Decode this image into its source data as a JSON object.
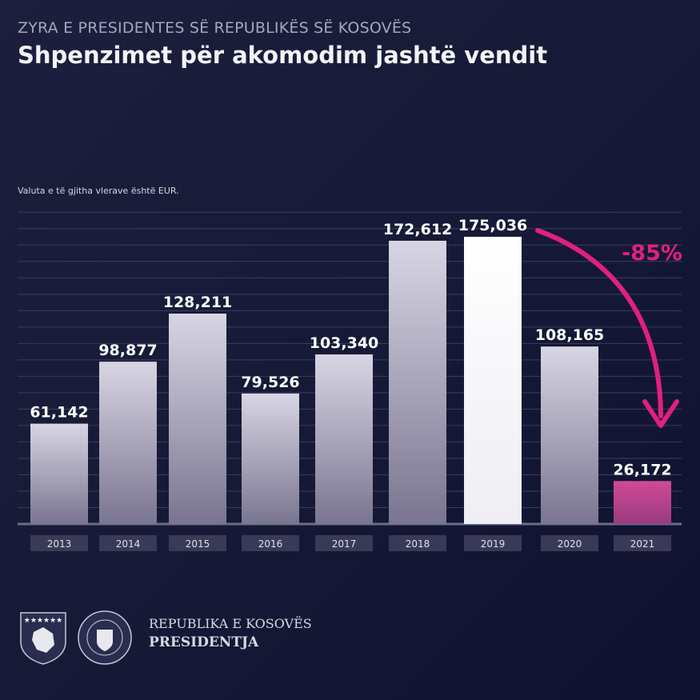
{
  "header": {
    "supertitle": "ZYRA E PRESIDENTES SË REPUBLIKËS SË KOSOVËS",
    "title": "Shpenzimet për akomodim jashtë vendit",
    "note": "Valuta e të gjitha vlerave është EUR."
  },
  "chart_data": {
    "type": "bar",
    "title": "Shpenzimet për akomodim jashtë vendit",
    "xlabel": "",
    "ylabel": "EUR",
    "categories": [
      "2013",
      "2014",
      "2015",
      "2016",
      "2017",
      "2018",
      "2019",
      "2020",
      "2021"
    ],
    "values": [
      61142,
      98877,
      128211,
      79526,
      103340,
      172612,
      175036,
      108165,
      26172
    ],
    "value_labels": [
      "61,142",
      "98,877",
      "128,211",
      "79,526",
      "103,340",
      "172,612",
      "175,036",
      "108,165",
      "26,172"
    ],
    "ylim": [
      0,
      195000
    ],
    "grid": true,
    "annotation": {
      "text": "-85%",
      "from": "2019",
      "to": "2021"
    },
    "colors": {
      "default": "#c9c6d6",
      "highlight": "#ffffff",
      "last": "#c2418c",
      "annotation": "#e0207e"
    }
  },
  "footer": {
    "line1": "REPUBLIKA E KOSOVËS",
    "line2": "PRESIDENTJA"
  }
}
